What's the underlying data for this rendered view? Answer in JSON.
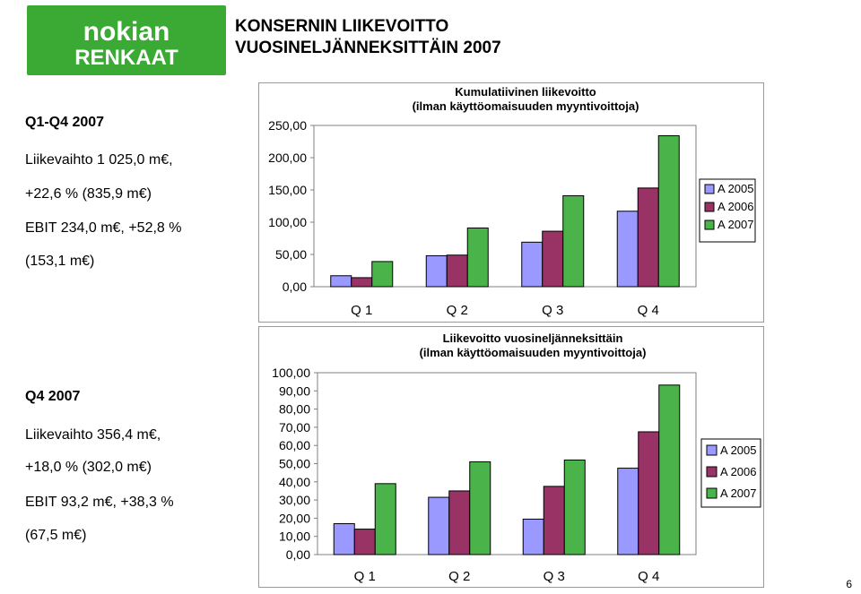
{
  "logo": {
    "line1": "nokian",
    "line2": "RENKAAT"
  },
  "slide": {
    "title_line1": "KONSERNIN LIIKEVOITTO",
    "title_line2": "VUOSINELJÄNNEKSITTÄIN 2007",
    "page_number": "6"
  },
  "left_panel": {
    "top": {
      "heading": "Q1-Q4 2007",
      "line1": "Liikevaihto 1 025,0 m€,",
      "line2": "+22,6 % (835,9 m€)",
      "line3": "EBIT 234,0 m€, +52,8 %",
      "line4": "(153,1 m€)"
    },
    "bottom": {
      "heading": "Q4 2007",
      "line1": "Liikevaihto 356,4 m€,",
      "line2": "+18,0 % (302,0 m€)",
      "line3": "EBIT 93,2 m€, +38,3 %",
      "line4": "(67,5 m€)"
    }
  },
  "colors": {
    "A 2005": "#9999ff",
    "A 2006": "#993366",
    "A 2007": "#4ab34a",
    "logo_green": "#3aaa35"
  },
  "chart_data": [
    {
      "type": "bar",
      "title": "Kumulatiivinen liikevoitto\n(ilman käyttöomaisuuden myyntivoittoja)",
      "categories": [
        "Q 1",
        "Q 2",
        "Q 3",
        "Q 4"
      ],
      "series": [
        {
          "name": "A 2005",
          "values": [
            17,
            48,
            69,
            117
          ]
        },
        {
          "name": "A 2006",
          "values": [
            14,
            49,
            86,
            153
          ]
        },
        {
          "name": "A 2007",
          "values": [
            39,
            91,
            141,
            234
          ]
        }
      ],
      "yticks": [
        "0,00",
        "50,00",
        "100,00",
        "150,00",
        "200,00",
        "250,00"
      ],
      "ylim": [
        0,
        250
      ],
      "legend": "right",
      "grid": false
    },
    {
      "type": "bar",
      "title": "Liikevoitto vuosineljänneksittäin\n(ilman käyttöomaisuuden myyntivoittoja)",
      "categories": [
        "Q 1",
        "Q 2",
        "Q 3",
        "Q 4"
      ],
      "series": [
        {
          "name": "A 2005",
          "values": [
            17,
            31.5,
            19.5,
            47.5
          ]
        },
        {
          "name": "A 2006",
          "values": [
            14,
            35,
            37.5,
            67.5
          ]
        },
        {
          "name": "A 2007",
          "values": [
            39,
            51,
            52,
            93.2
          ]
        }
      ],
      "yticks": [
        "0,00",
        "10,00",
        "20,00",
        "30,00",
        "40,00",
        "50,00",
        "60,00",
        "70,00",
        "80,00",
        "90,00",
        "100,00"
      ],
      "ylim": [
        0,
        100
      ],
      "legend": "right",
      "grid": false
    }
  ]
}
